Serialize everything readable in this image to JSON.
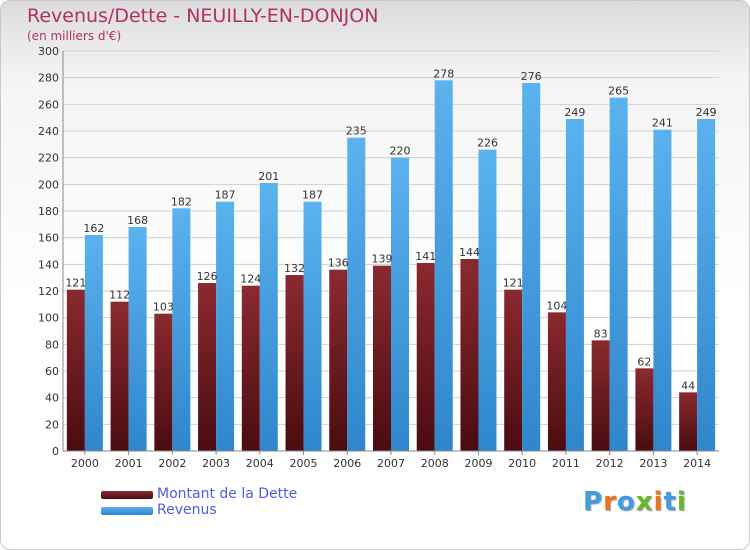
{
  "header": {
    "title": "Revenus/Dette - NEUILLY-EN-DONJON",
    "subtitle": "(en milliers d'€)"
  },
  "colors": {
    "title": "#b0306a",
    "dette": "#6b1a1e",
    "revenus": "#3f9ee0",
    "legend_text": "#4a5ee0",
    "grid": "#cfcfcf"
  },
  "legend": {
    "items": [
      {
        "label": "Montant de la Dette",
        "color": "#6b1a1e"
      },
      {
        "label": "Revenus",
        "color": "#3f9ee0"
      }
    ]
  },
  "logo": {
    "text": "Proxiti",
    "letter_colors": [
      "#3f9ee0",
      "#e8741e",
      "#3f9ee0",
      "#6ab82a",
      "#e8741e",
      "#3f9ee0",
      "#6ab82a"
    ]
  },
  "chart_data": {
    "type": "bar",
    "title": "Revenus/Dette - NEUILLY-EN-DONJON",
    "subtitle": "(en milliers d'€)",
    "categories": [
      "2000",
      "2001",
      "2002",
      "2003",
      "2004",
      "2005",
      "2006",
      "2007",
      "2008",
      "2009",
      "2010",
      "2011",
      "2012",
      "2013",
      "2014"
    ],
    "series": [
      {
        "name": "Montant de la Dette",
        "values": [
          121,
          112,
          103,
          126,
          124,
          132,
          136,
          139,
          141,
          144,
          121,
          104,
          83,
          62,
          44
        ]
      },
      {
        "name": "Revenus",
        "values": [
          162,
          168,
          182,
          187,
          201,
          187,
          235,
          220,
          278,
          226,
          276,
          249,
          265,
          241,
          249
        ]
      }
    ],
    "ylim": [
      0,
      300
    ],
    "yticks": [
      0,
      20,
      40,
      60,
      80,
      100,
      120,
      140,
      160,
      180,
      200,
      220,
      240,
      260,
      280,
      300
    ],
    "grid": true,
    "legend_position": "bottom-left"
  }
}
